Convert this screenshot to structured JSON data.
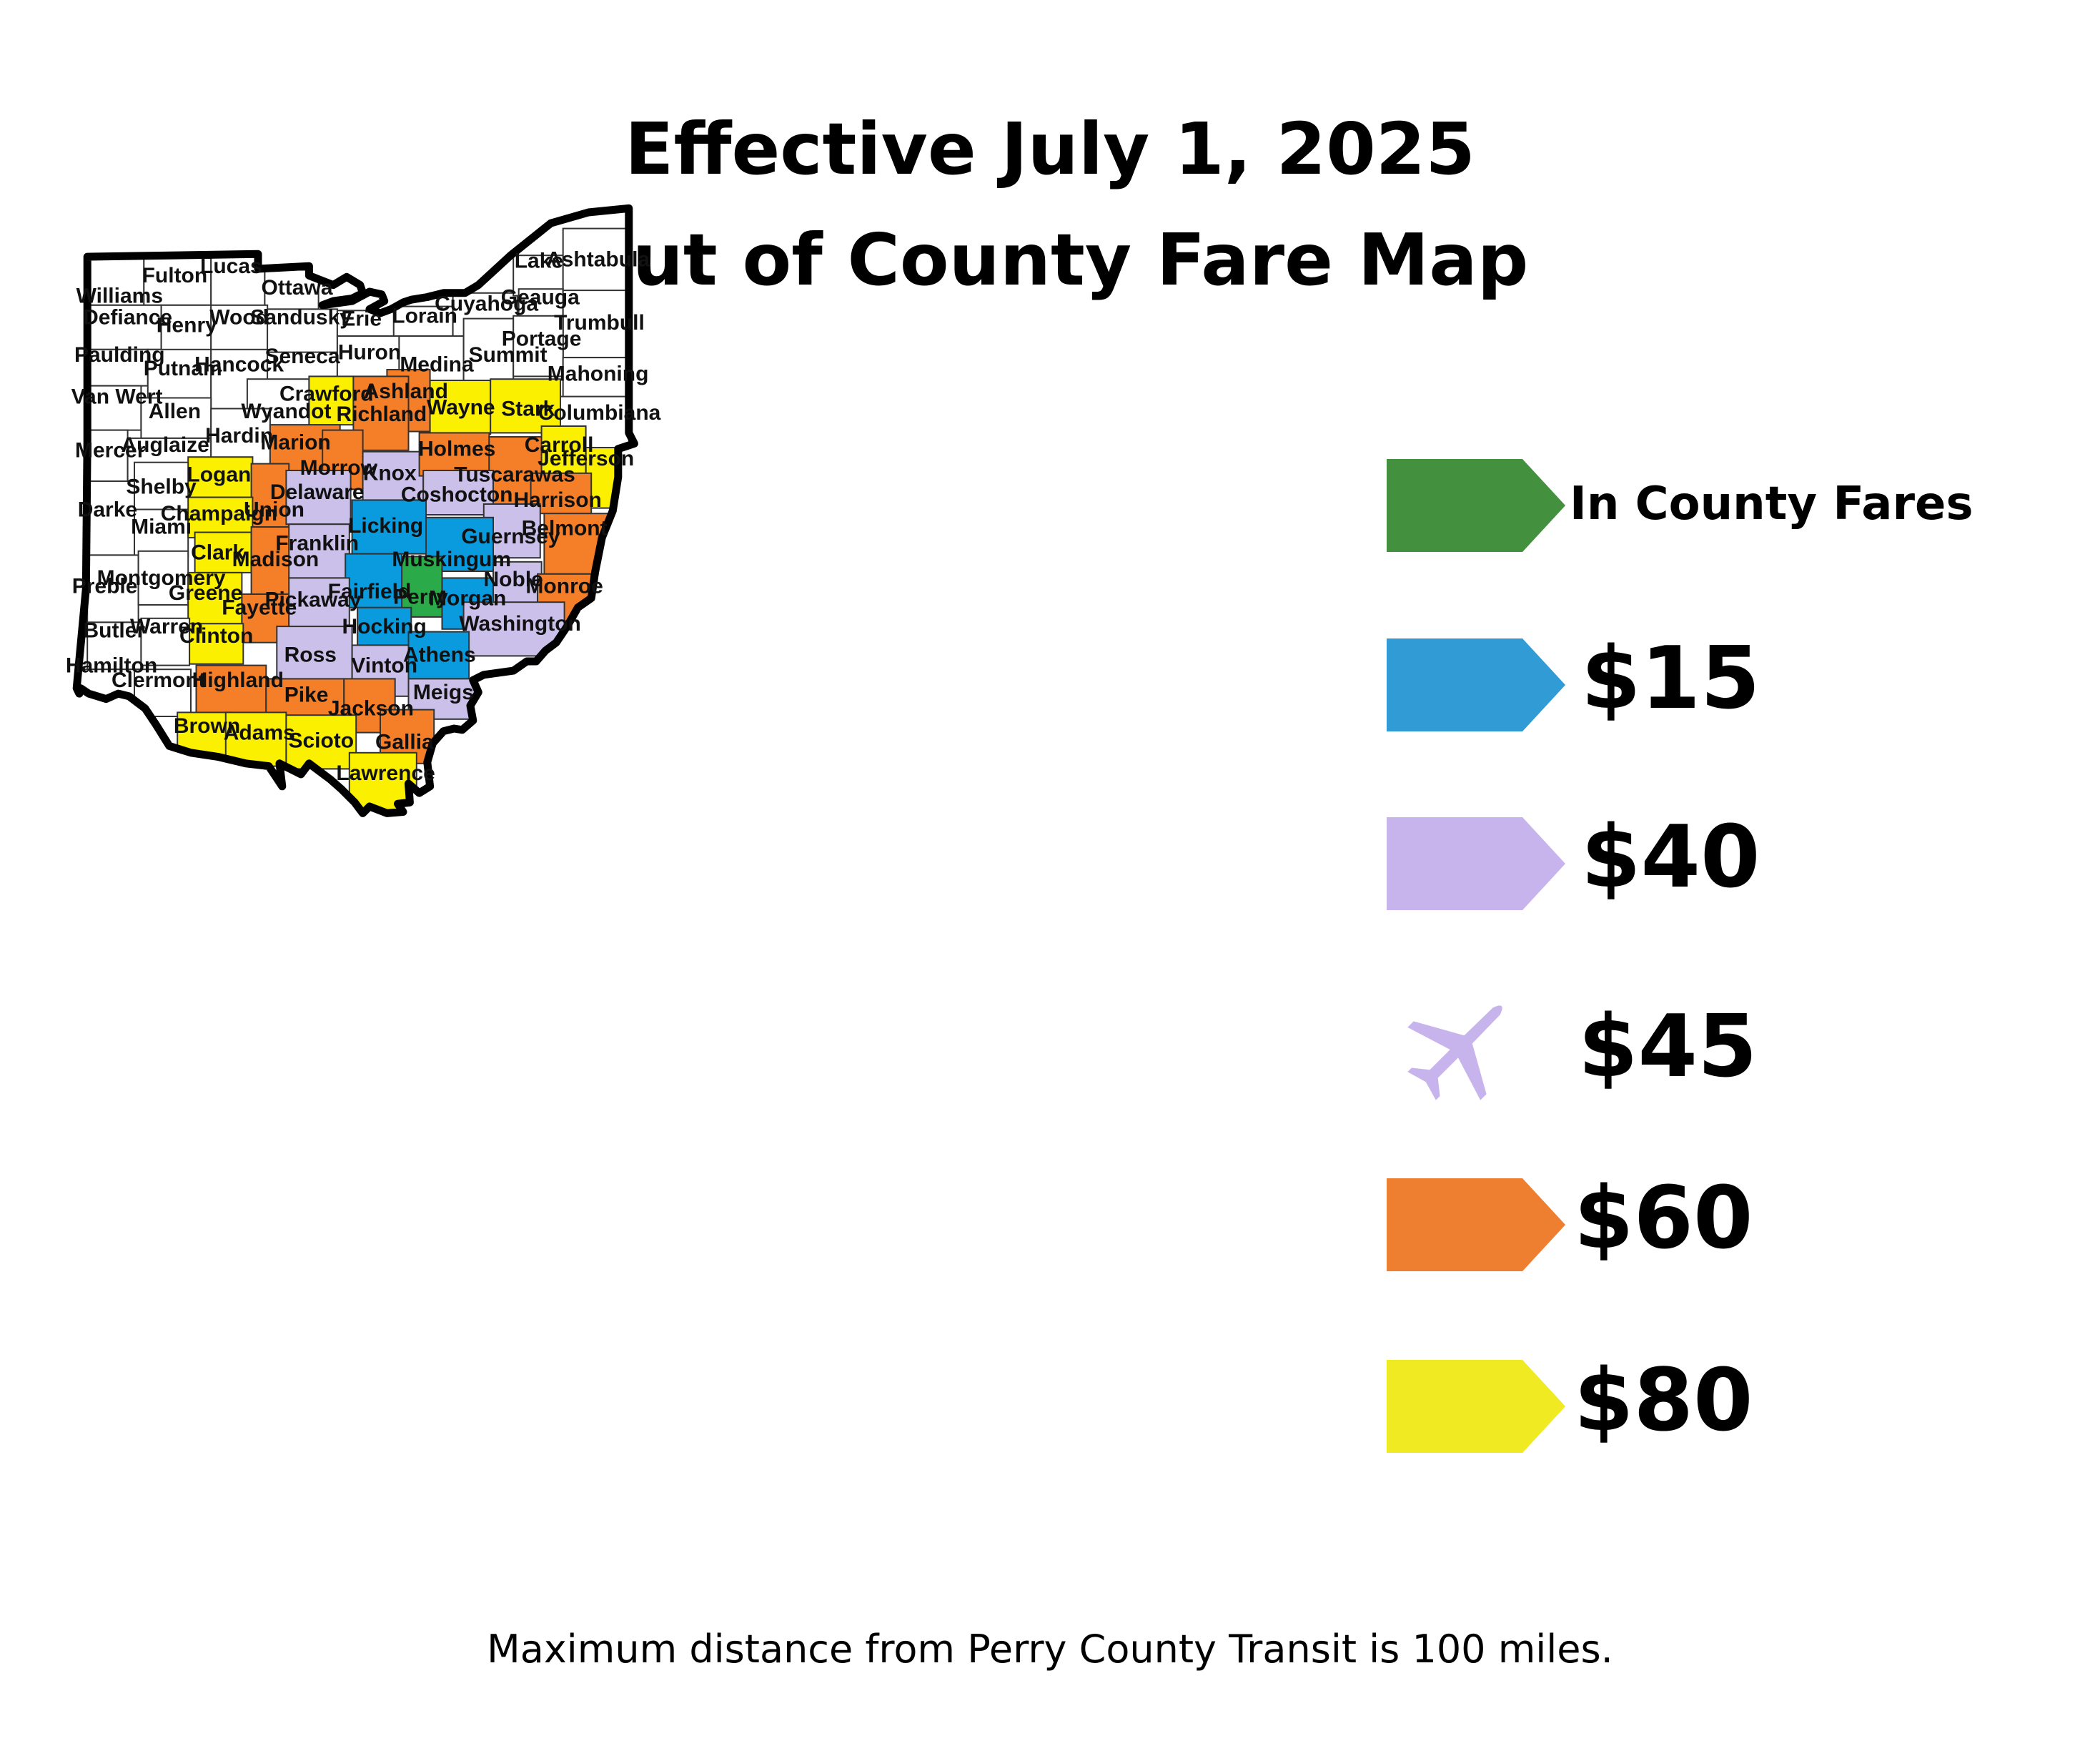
{
  "title": {
    "line1": "Effective July 1, 2025",
    "line2": "Out of County Fare Map"
  },
  "footnote": "Maximum distance from Perry County Transit is 100 miles.",
  "colors": {
    "green": "#43913f",
    "blue": "#319bd6",
    "lavender": "#c8b4ec",
    "orange": "#ef7f30",
    "yellow": "#f0ea22",
    "white": "#ffffff",
    "county_green": "#2aaa48",
    "county_blue": "#0a9bdf",
    "county_lavender": "#cac0ea",
    "county_orange": "#f57f28",
    "county_yellow": "#fbf000"
  },
  "legend": [
    {
      "label": "In County Fares",
      "color": "#43913f",
      "icon": "arrow-tag-icon"
    },
    {
      "label": "$15",
      "color": "#319bd6",
      "icon": "arrow-tag-icon"
    },
    {
      "label": "$40",
      "color": "#c8b4ec",
      "icon": "arrow-tag-icon"
    },
    {
      "label": "$45",
      "color": "#c8b4ec",
      "icon": "airplane-icon"
    },
    {
      "label": "$60",
      "color": "#ef7f30",
      "icon": "arrow-tag-icon"
    },
    {
      "label": "$80",
      "color": "#f0ea22",
      "icon": "arrow-tag-icon"
    }
  ],
  "counties": [
    {
      "name": "Fulton",
      "fare": "none"
    },
    {
      "name": "Lucas",
      "fare": "none"
    },
    {
      "name": "Williams",
      "fare": "none"
    },
    {
      "name": "Ottawa",
      "fare": "none"
    },
    {
      "name": "Defiance",
      "fare": "none"
    },
    {
      "name": "Henry",
      "fare": "none"
    },
    {
      "name": "Wood",
      "fare": "none"
    },
    {
      "name": "Sandusky",
      "fare": "none"
    },
    {
      "name": "Erie",
      "fare": "none"
    },
    {
      "name": "Lorain",
      "fare": "none"
    },
    {
      "name": "Cuyahoga",
      "fare": "none"
    },
    {
      "name": "Lake",
      "fare": "none"
    },
    {
      "name": "Ashtabula",
      "fare": "none"
    },
    {
      "name": "Geauga",
      "fare": "none"
    },
    {
      "name": "Trumbull",
      "fare": "none"
    },
    {
      "name": "Paulding",
      "fare": "none"
    },
    {
      "name": "Putnam",
      "fare": "none"
    },
    {
      "name": "Hancock",
      "fare": "none"
    },
    {
      "name": "Seneca",
      "fare": "none"
    },
    {
      "name": "Huron",
      "fare": "none"
    },
    {
      "name": "Medina",
      "fare": "none"
    },
    {
      "name": "Summit",
      "fare": "none"
    },
    {
      "name": "Portage",
      "fare": "none"
    },
    {
      "name": "Mahoning",
      "fare": "none"
    },
    {
      "name": "Van Wert",
      "fare": "none"
    },
    {
      "name": "Allen",
      "fare": "none"
    },
    {
      "name": "Wyandot",
      "fare": "none"
    },
    {
      "name": "Crawford",
      "fare": "$80"
    },
    {
      "name": "Ashland",
      "fare": "$60"
    },
    {
      "name": "Richland",
      "fare": "$60"
    },
    {
      "name": "Wayne",
      "fare": "$80"
    },
    {
      "name": "Stark",
      "fare": "$80"
    },
    {
      "name": "Columbiana",
      "fare": "none"
    },
    {
      "name": "Mercer",
      "fare": "none"
    },
    {
      "name": "Auglaize",
      "fare": "none"
    },
    {
      "name": "Hardin",
      "fare": "none"
    },
    {
      "name": "Marion",
      "fare": "$60"
    },
    {
      "name": "Morrow",
      "fare": "$60"
    },
    {
      "name": "Knox",
      "fare": "$40"
    },
    {
      "name": "Holmes",
      "fare": "$60"
    },
    {
      "name": "Tuscarawas",
      "fare": "$60"
    },
    {
      "name": "Carroll",
      "fare": "$80"
    },
    {
      "name": "Jefferson",
      "fare": "$80"
    },
    {
      "name": "Shelby",
      "fare": "none"
    },
    {
      "name": "Logan",
      "fare": "$80"
    },
    {
      "name": "Union",
      "fare": "$60"
    },
    {
      "name": "Delaware",
      "fare": "$40"
    },
    {
      "name": "Coshocton",
      "fare": "$40"
    },
    {
      "name": "Harrison",
      "fare": "$60"
    },
    {
      "name": "Darke",
      "fare": "none"
    },
    {
      "name": "Miami",
      "fare": "none"
    },
    {
      "name": "Champaign",
      "fare": "$80"
    },
    {
      "name": "Licking",
      "fare": "$15"
    },
    {
      "name": "Guernsey",
      "fare": "$40"
    },
    {
      "name": "Belmont",
      "fare": "$60"
    },
    {
      "name": "Clark",
      "fare": "$80"
    },
    {
      "name": "Madison",
      "fare": "$60"
    },
    {
      "name": "Franklin",
      "fare": "$40"
    },
    {
      "name": "Muskingum",
      "fare": "$15"
    },
    {
      "name": "Preble",
      "fare": "none"
    },
    {
      "name": "Montgomery",
      "fare": "none"
    },
    {
      "name": "Greene",
      "fare": "$80"
    },
    {
      "name": "Fairfield",
      "fare": "$15"
    },
    {
      "name": "Perry",
      "fare": "In County Fares"
    },
    {
      "name": "Morgan",
      "fare": "$15"
    },
    {
      "name": "Noble",
      "fare": "$40"
    },
    {
      "name": "Monroe",
      "fare": "$60"
    },
    {
      "name": "Fayette",
      "fare": "$60"
    },
    {
      "name": "Pickaway",
      "fare": "$40"
    },
    {
      "name": "Hocking",
      "fare": "$15"
    },
    {
      "name": "Washington",
      "fare": "$40"
    },
    {
      "name": "Butler",
      "fare": "none"
    },
    {
      "name": "Warren",
      "fare": "none"
    },
    {
      "name": "Clinton",
      "fare": "$80"
    },
    {
      "name": "Ross",
      "fare": "$40"
    },
    {
      "name": "Vinton",
      "fare": "$40"
    },
    {
      "name": "Athens",
      "fare": "$15"
    },
    {
      "name": "Hamilton",
      "fare": "none"
    },
    {
      "name": "Clermont",
      "fare": "none"
    },
    {
      "name": "Highland",
      "fare": "$60"
    },
    {
      "name": "Pike",
      "fare": "$60"
    },
    {
      "name": "Jackson",
      "fare": "$60"
    },
    {
      "name": "Meigs",
      "fare": "$40"
    },
    {
      "name": "Brown",
      "fare": "$80"
    },
    {
      "name": "Adams",
      "fare": "$80"
    },
    {
      "name": "Scioto",
      "fare": "$80"
    },
    {
      "name": "Gallia",
      "fare": "$60"
    },
    {
      "name": "Lawrence",
      "fare": "$80"
    }
  ]
}
